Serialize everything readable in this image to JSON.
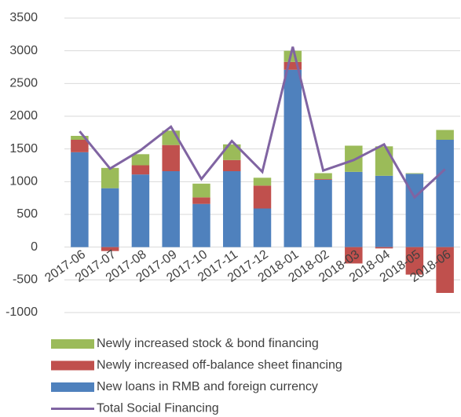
{
  "chart_data": {
    "type": "bar",
    "stacked": true,
    "categories": [
      "2017-06",
      "2017-07",
      "2017-08",
      "2017-09",
      "2017-10",
      "2017-11",
      "2017-12",
      "2018-01",
      "2018-02",
      "2018-03",
      "2018-04",
      "2018-05",
      "2018-06"
    ],
    "series": [
      {
        "name": "Newly increased stock & bond financing",
        "color": "#9bbb59",
        "type": "bar",
        "values": [
          60,
          310,
          170,
          220,
          210,
          240,
          120,
          170,
          90,
          400,
          450,
          10,
          150
        ]
      },
      {
        "name": "Newly increased off-balance sheet financing",
        "color": "#c0504d",
        "type": "bar",
        "values": [
          190,
          -60,
          140,
          400,
          100,
          170,
          350,
          120,
          10,
          -250,
          -20,
          -420,
          -700
        ]
      },
      {
        "name": "New loans in RMB and foreign currency",
        "color": "#4f81bd",
        "type": "bar",
        "values": [
          1450,
          900,
          1110,
          1160,
          660,
          1160,
          590,
          2710,
          1030,
          1150,
          1090,
          1120,
          1640
        ]
      },
      {
        "name": "Total Social Financing",
        "color": "#8064a2",
        "type": "line",
        "values": [
          1770,
          1200,
          1480,
          1840,
          1040,
          1620,
          1150,
          3060,
          1170,
          1330,
          1570,
          760,
          1190
        ]
      }
    ],
    "ylim": [
      -1000,
      3500
    ],
    "yticks": [
      -1000,
      -500,
      0,
      500,
      1000,
      1500,
      2000,
      2500,
      3000,
      3500
    ],
    "grid": true
  }
}
